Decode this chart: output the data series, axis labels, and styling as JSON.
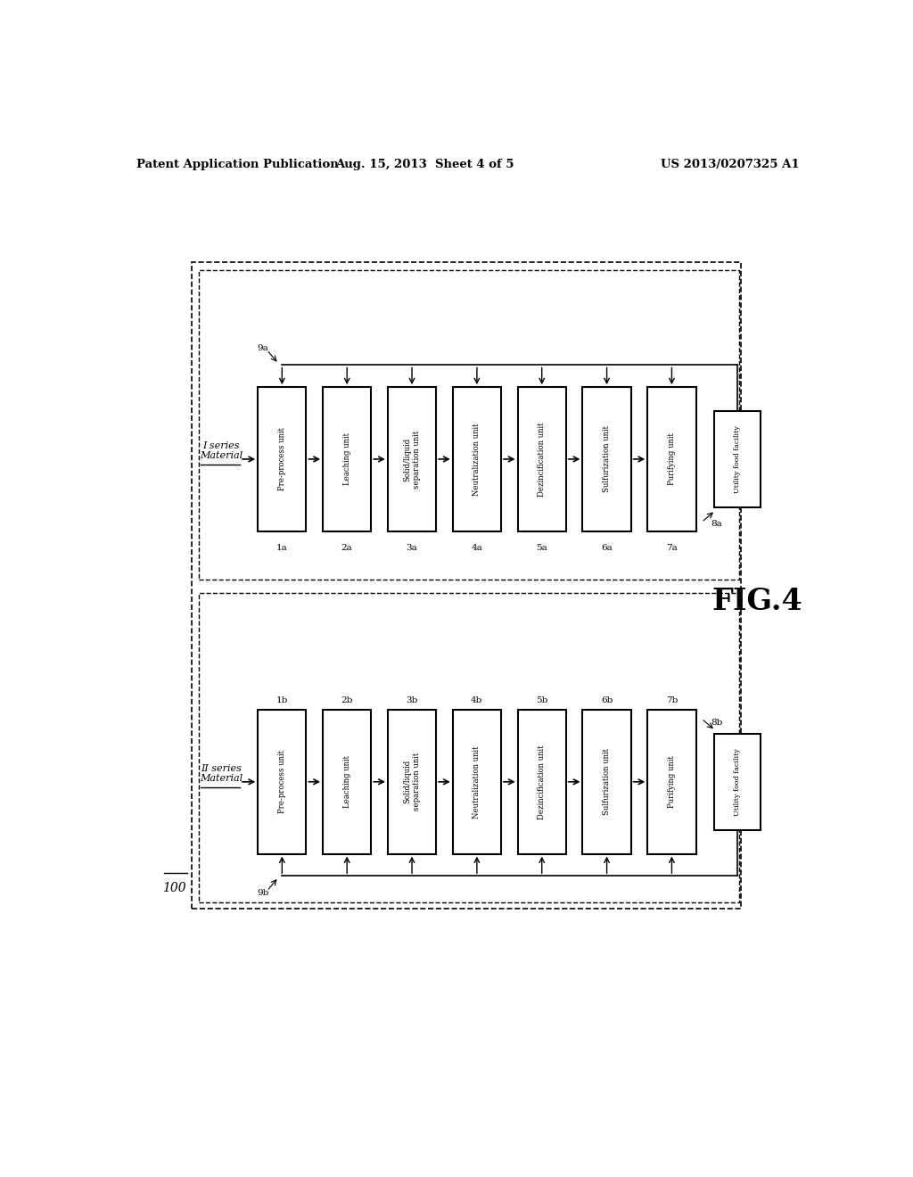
{
  "header_left": "Patent Application Publication",
  "header_mid": "Aug. 15, 2013  Sheet 4 of 5",
  "header_right": "US 2013/0207325 A1",
  "fig_label": "FIG.4",
  "outer_label": "100",
  "series_I_label": "I series\nMaterial",
  "series_II_label": "II series\nMaterial",
  "boxes_a": [
    "Pre-process unit",
    "Leaching unit",
    "Solid/liquid\nseparation unit",
    "Neutralization unit",
    "Dezincification unit",
    "Sulfurization unit",
    "Purifying unit"
  ],
  "boxes_b": [
    "Pre-process unit",
    "Leaching unit",
    "Solid/liquid\nseparation unit",
    "Neutralization unit",
    "Dezincification unit",
    "Sulfurization unit",
    "Purifying unit"
  ],
  "labels_a": [
    "1a",
    "2a",
    "3a",
    "4a",
    "5a",
    "6a",
    "7a"
  ],
  "labels_b": [
    "1b",
    "2b",
    "3b",
    "4b",
    "5b",
    "6b",
    "7b"
  ],
  "utility_a": "Utility food facility",
  "utility_b": "Utility food facility",
  "utility_label_a": "8a",
  "utility_label_b": "8b",
  "feed_label_a": "9a",
  "feed_label_b": "9b",
  "bg_color": "#ffffff",
  "box_color": "#ffffff",
  "box_edge": "#000000",
  "text_color": "#000000"
}
